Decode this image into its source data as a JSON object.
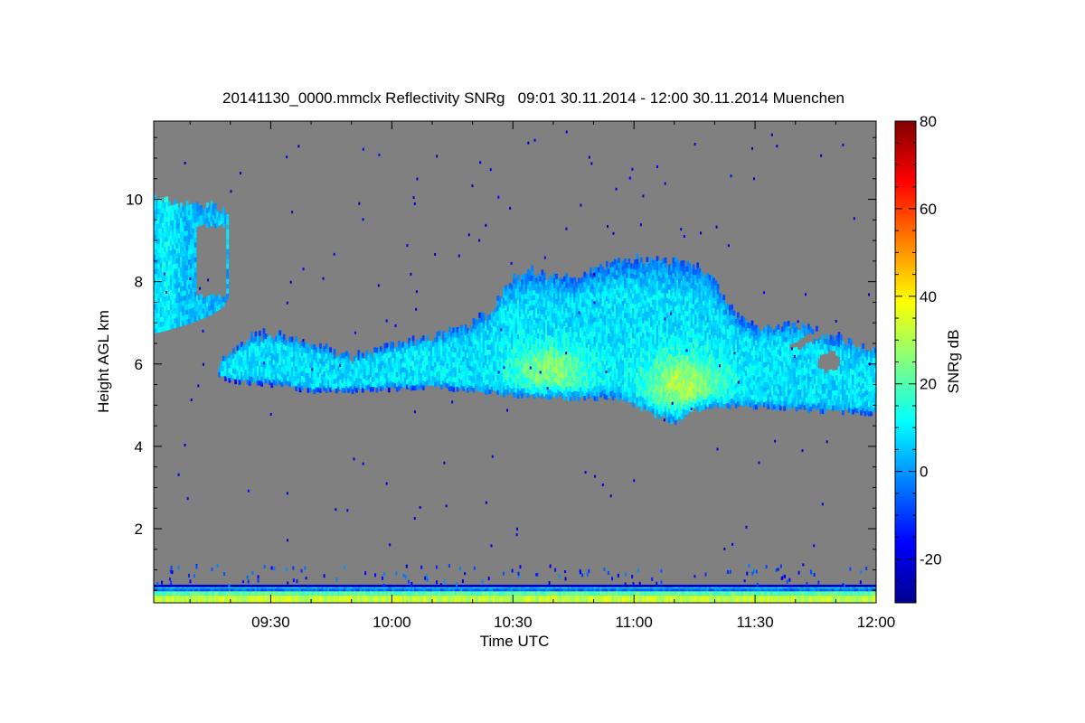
{
  "chart_data": {
    "type": "heatmap",
    "title": "20141130_0000.mmclx Reflectivity SNRg   09:01 30.11.2014 - 12:00 30.11.2014 Muenchen",
    "xlabel": "Time UTC",
    "ylabel": "Height AGL km",
    "colorbar_label": "SNRg dB",
    "x_range": [
      "09:01",
      "12:00"
    ],
    "x_ticks": [
      "09:30",
      "10:00",
      "10:30",
      "11:00",
      "11:30",
      "12:00"
    ],
    "x_tick_minutes": [
      30,
      60,
      90,
      120,
      150,
      180
    ],
    "ylim": [
      0.2,
      11.9
    ],
    "y_ticks": [
      2,
      4,
      6,
      8,
      10
    ],
    "color_range": [
      -30,
      80
    ],
    "color_ticks": [
      -20,
      0,
      20,
      40,
      60,
      80
    ],
    "no_signal_color": "#808080",
    "colormap": [
      "#00008f",
      "#0000ff",
      "#0080ff",
      "#00ffff",
      "#80ff80",
      "#ffff00",
      "#ff8000",
      "#ff0000",
      "#800000"
    ],
    "features": [
      {
        "feature": "upper cloud",
        "time": [
          "09:01",
          "09:19"
        ],
        "top_km": 10.0,
        "base_km": 6.7,
        "snr_db": [
          0,
          10
        ]
      },
      {
        "feature": "main cloud layer",
        "time": [
          "09:18",
          "12:00"
        ],
        "top_km": 8.5,
        "base_km": 4.6,
        "snr_db": [
          -10,
          25
        ]
      },
      {
        "feature": "near-ground clutter",
        "time": [
          "09:01",
          "12:00"
        ],
        "top_km": 0.6,
        "base_km": 0.2,
        "snr_db": [
          20,
          40
        ]
      }
    ]
  }
}
